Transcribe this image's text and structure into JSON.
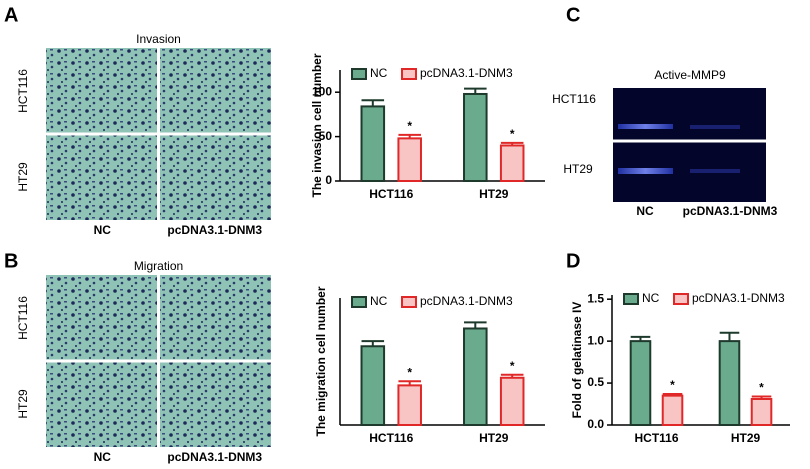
{
  "panel_labels": [
    "A",
    "B",
    "C",
    "D"
  ],
  "images": [
    {
      "title": "Invasion",
      "rows": [
        "HCT116",
        "HT29"
      ],
      "columns": [
        "NC",
        "pcDNA3.1-DNM3"
      ]
    },
    {
      "title": "Migration",
      "rows": [
        "HCT116",
        "HT29"
      ],
      "columns": [
        "NC",
        "pcDNA3.1-DNM3"
      ]
    }
  ],
  "gel": {
    "title": "Active-MMP9",
    "rows": [
      "HCT116",
      "HT29"
    ],
    "columns": [
      "NC",
      "pcDNA3.1-DNM3"
    ]
  },
  "chart_data": [
    {
      "type": "bar",
      "ylabel": "The invasion cell number",
      "categories": [
        "HCT116",
        "HT29"
      ],
      "series": [
        {
          "name": "NC",
          "color": "#6aab8e",
          "edgecolor": "#1e3a2c",
          "values": [
            84,
            98
          ],
          "errors": [
            7,
            6
          ]
        },
        {
          "name": "pcDNA3.1-DNM3",
          "color": "#f8c4c4",
          "edgecolor": "#e02828",
          "values": [
            48,
            40
          ],
          "errors": [
            4,
            3
          ],
          "significance": [
            "*",
            "*"
          ]
        }
      ],
      "ylim": [
        0,
        125
      ],
      "yticks": [
        0,
        50,
        100
      ]
    },
    {
      "type": "bar",
      "ylabel": "The migration cell number",
      "categories": [
        "HCT116",
        "HT29"
      ],
      "series": [
        {
          "name": "NC",
          "color": "#6aab8e",
          "edgecolor": "#1e3a2c",
          "values": [
            155,
            190
          ],
          "errors": [
            10,
            12
          ]
        },
        {
          "name": "pcDNA3.1-DNM3",
          "color": "#f8c4c4",
          "edgecolor": "#e02828",
          "values": [
            78,
            93
          ],
          "errors": [
            8,
            6
          ],
          "significance": [
            "*",
            "*"
          ]
        }
      ],
      "ylim": [
        0,
        250
      ]
    },
    {
      "type": "bar",
      "ylabel": "Fold of gelatinase IV",
      "categories": [
        "HCT116",
        "HT29"
      ],
      "series": [
        {
          "name": "NC",
          "color": "#6aab8e",
          "edgecolor": "#1e3a2c",
          "values": [
            1.0,
            1.0
          ],
          "errors": [
            0.05,
            0.1
          ]
        },
        {
          "name": "pcDNA3.1-DNM3",
          "color": "#f8c4c4",
          "edgecolor": "#e02828",
          "values": [
            0.35,
            0.31
          ],
          "errors": [
            0.02,
            0.03
          ],
          "significance": [
            "*",
            "*"
          ]
        }
      ],
      "ylim": [
        0,
        1.55
      ],
      "yticks": [
        {
          "value": 0,
          "label": "0.0"
        },
        {
          "value": 0.5,
          "label": "0.5"
        },
        {
          "value": 1,
          "label": "1.0"
        },
        {
          "value": 1.5,
          "label": "1.5"
        }
      ]
    }
  ]
}
